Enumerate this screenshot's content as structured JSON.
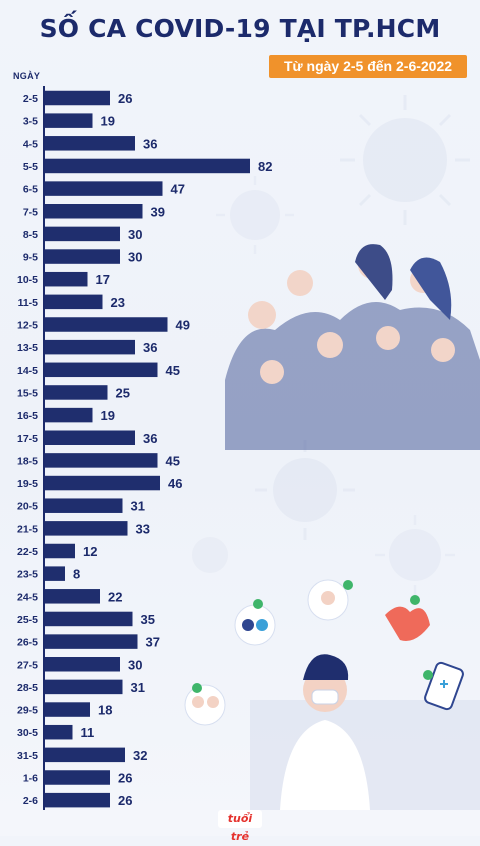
{
  "header": {
    "title": "SỐ CA COVID-19 TẠI TP.HCM",
    "subtitle": "Từ ngày 2-5 đến 2-6-2022"
  },
  "colors": {
    "bar": "#1f2e6e",
    "title": "#1c2a6b",
    "badge": "#f0922b"
  },
  "logo": {
    "text": "tuổi trẻ"
  },
  "chart_data": {
    "type": "bar",
    "orientation": "horizontal",
    "title": "SỐ CA COVID-19 TẠI TP.HCM",
    "subtitle": "Từ ngày 2-5 đến 2-6-2022",
    "ylabel": "NGÀY",
    "categories": [
      "2-5",
      "3-5",
      "4-5",
      "5-5",
      "6-5",
      "7-5",
      "8-5",
      "9-5",
      "10-5",
      "11-5",
      "12-5",
      "13-5",
      "14-5",
      "15-5",
      "16-5",
      "17-5",
      "18-5",
      "19-5",
      "20-5",
      "21-5",
      "22-5",
      "23-5",
      "24-5",
      "25-5",
      "26-5",
      "27-5",
      "28-5",
      "29-5",
      "30-5",
      "31-5",
      "1-6",
      "2-6"
    ],
    "values": [
      26,
      19,
      36,
      82,
      47,
      39,
      30,
      30,
      17,
      23,
      49,
      36,
      45,
      25,
      19,
      36,
      45,
      46,
      31,
      33,
      12,
      8,
      22,
      35,
      37,
      30,
      31,
      18,
      11,
      32,
      26,
      26
    ],
    "data_labels": true,
    "grid": false
  }
}
